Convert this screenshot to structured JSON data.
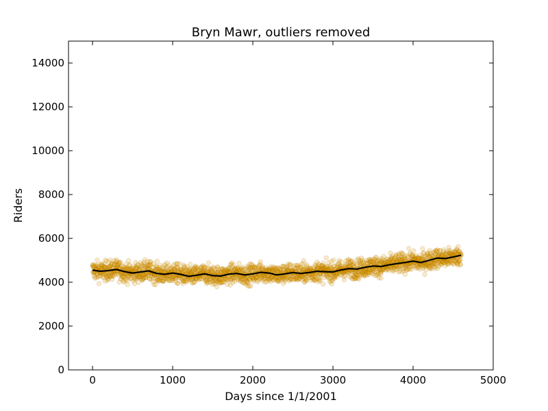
{
  "chart_data": {
    "type": "scatter",
    "title": "Bryn Mawr, outliers removed",
    "xlabel": "Days since 1/1/2001",
    "ylabel": "Riders",
    "xlim": [
      -300,
      5000
    ],
    "ylim": [
      0,
      15000
    ],
    "xticks": [
      0,
      1000,
      2000,
      3000,
      4000,
      5000
    ],
    "yticks": [
      0,
      2000,
      4000,
      6000,
      8000,
      10000,
      12000,
      14000
    ],
    "grid": false,
    "legend": "none",
    "colors": {
      "points": "#e69f00",
      "point_edge": "#8a5f00",
      "trend": "#000000"
    },
    "trend": {
      "x": [
        0,
        100,
        200,
        300,
        400,
        500,
        600,
        700,
        800,
        900,
        1000,
        1100,
        1200,
        1300,
        1400,
        1500,
        1600,
        1700,
        1800,
        1900,
        2000,
        2100,
        2200,
        2300,
        2400,
        2500,
        2600,
        2700,
        2800,
        2900,
        3000,
        3100,
        3200,
        3300,
        3400,
        3500,
        3600,
        3700,
        3800,
        3900,
        4000,
        4100,
        4200,
        4300,
        4400,
        4500,
        4600
      ],
      "y": [
        4550,
        4500,
        4530,
        4580,
        4480,
        4420,
        4470,
        4520,
        4400,
        4360,
        4420,
        4360,
        4270,
        4320,
        4380,
        4300,
        4280,
        4370,
        4400,
        4330,
        4380,
        4450,
        4420,
        4330,
        4380,
        4440,
        4400,
        4440,
        4500,
        4480,
        4470,
        4560,
        4620,
        4600,
        4680,
        4740,
        4720,
        4790,
        4850,
        4900,
        4960,
        4900,
        5000,
        5100,
        5080,
        5150,
        5230
      ]
    },
    "scatter_spread": 220,
    "x_range": [
      0,
      4600
    ]
  }
}
